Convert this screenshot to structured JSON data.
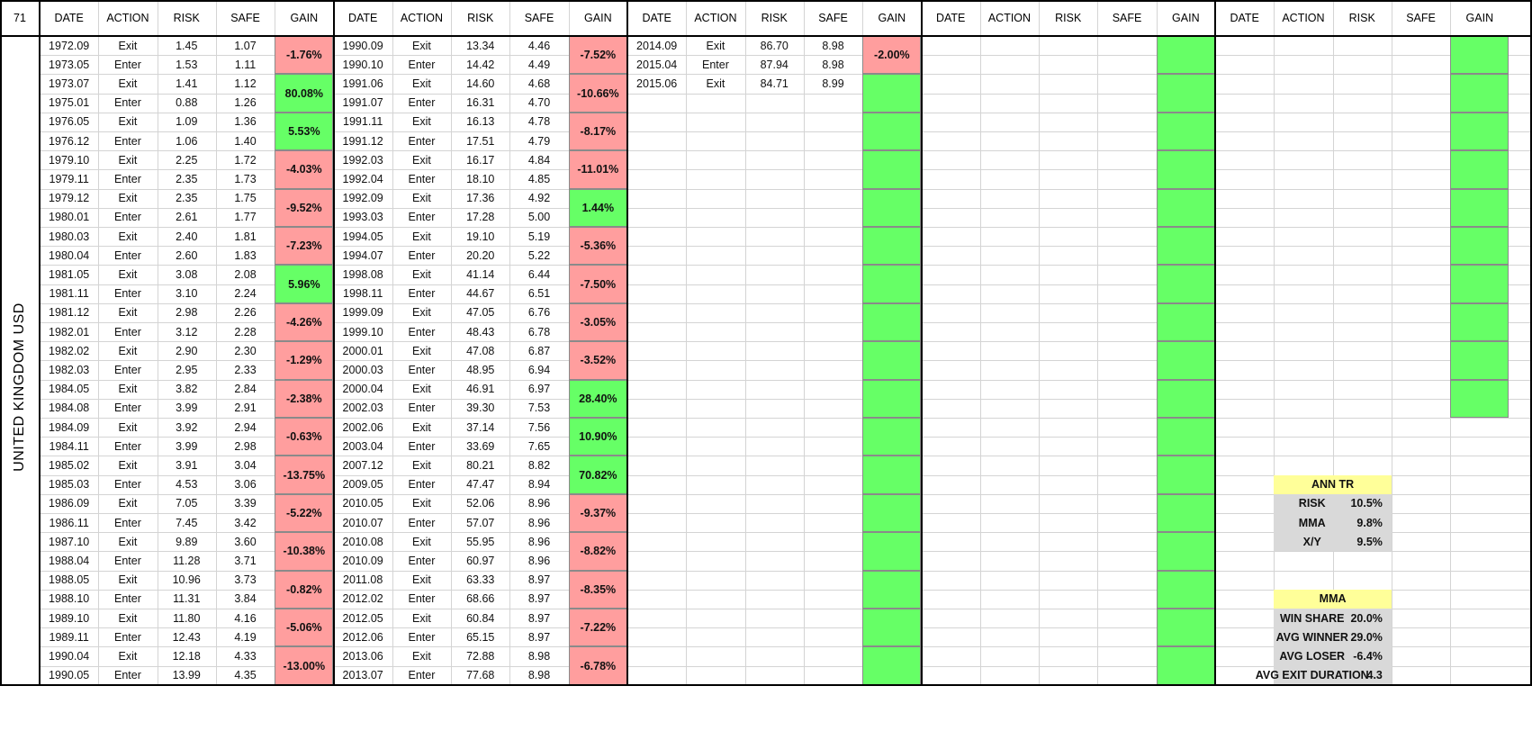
{
  "corner_label": "71",
  "side_label": "UNITED KINGDOM USD",
  "headers": [
    "DATE",
    "ACTION",
    "RISK",
    "SAFE",
    "GAIN"
  ],
  "blocks": [
    {
      "rows": [
        [
          "1972.09",
          "Exit",
          "1.45",
          "1.07"
        ],
        [
          "1973.05",
          "Enter",
          "1.53",
          "1.11"
        ],
        [
          "1973.07",
          "Exit",
          "1.41",
          "1.12"
        ],
        [
          "1975.01",
          "Enter",
          "0.88",
          "1.26"
        ],
        [
          "1976.05",
          "Exit",
          "1.09",
          "1.36"
        ],
        [
          "1976.12",
          "Enter",
          "1.06",
          "1.40"
        ],
        [
          "1979.10",
          "Exit",
          "2.25",
          "1.72"
        ],
        [
          "1979.11",
          "Enter",
          "2.35",
          "1.73"
        ],
        [
          "1979.12",
          "Exit",
          "2.35",
          "1.75"
        ],
        [
          "1980.01",
          "Enter",
          "2.61",
          "1.77"
        ],
        [
          "1980.03",
          "Exit",
          "2.40",
          "1.81"
        ],
        [
          "1980.04",
          "Enter",
          "2.60",
          "1.83"
        ],
        [
          "1981.05",
          "Exit",
          "3.08",
          "2.08"
        ],
        [
          "1981.11",
          "Enter",
          "3.10",
          "2.24"
        ],
        [
          "1981.12",
          "Exit",
          "2.98",
          "2.26"
        ],
        [
          "1982.01",
          "Enter",
          "3.12",
          "2.28"
        ],
        [
          "1982.02",
          "Exit",
          "2.90",
          "2.30"
        ],
        [
          "1982.03",
          "Enter",
          "2.95",
          "2.33"
        ],
        [
          "1984.05",
          "Exit",
          "3.82",
          "2.84"
        ],
        [
          "1984.08",
          "Enter",
          "3.99",
          "2.91"
        ],
        [
          "1984.09",
          "Exit",
          "3.92",
          "2.94"
        ],
        [
          "1984.11",
          "Enter",
          "3.99",
          "2.98"
        ],
        [
          "1985.02",
          "Exit",
          "3.91",
          "3.04"
        ],
        [
          "1985.03",
          "Enter",
          "4.53",
          "3.06"
        ],
        [
          "1986.09",
          "Exit",
          "7.05",
          "3.39"
        ],
        [
          "1986.11",
          "Enter",
          "7.45",
          "3.42"
        ],
        [
          "1987.10",
          "Exit",
          "9.89",
          "3.60"
        ],
        [
          "1988.04",
          "Enter",
          "11.28",
          "3.71"
        ],
        [
          "1988.05",
          "Exit",
          "10.96",
          "3.73"
        ],
        [
          "1988.10",
          "Enter",
          "11.31",
          "3.84"
        ],
        [
          "1989.10",
          "Exit",
          "11.80",
          "4.16"
        ],
        [
          "1989.11",
          "Enter",
          "12.43",
          "4.19"
        ],
        [
          "1990.04",
          "Exit",
          "12.18",
          "4.33"
        ],
        [
          "1990.05",
          "Enter",
          "13.99",
          "4.35"
        ]
      ],
      "gains": [
        {
          "text": "-1.76%",
          "color": "red"
        },
        {
          "text": "80.08%",
          "color": "green"
        },
        {
          "text": "5.53%",
          "color": "green"
        },
        {
          "text": "-4.03%",
          "color": "red"
        },
        {
          "text": "-9.52%",
          "color": "red"
        },
        {
          "text": "-7.23%",
          "color": "red"
        },
        {
          "text": "5.96%",
          "color": "green"
        },
        {
          "text": "-4.26%",
          "color": "red"
        },
        {
          "text": "-1.29%",
          "color": "red"
        },
        {
          "text": "-2.38%",
          "color": "red"
        },
        {
          "text": "-0.63%",
          "color": "red"
        },
        {
          "text": "-13.75%",
          "color": "red"
        },
        {
          "text": "-5.22%",
          "color": "red"
        },
        {
          "text": "-10.38%",
          "color": "red"
        },
        {
          "text": "-0.82%",
          "color": "red"
        },
        {
          "text": "-5.06%",
          "color": "red"
        },
        {
          "text": "-13.00%",
          "color": "red"
        }
      ]
    },
    {
      "rows": [
        [
          "1990.09",
          "Exit",
          "13.34",
          "4.46"
        ],
        [
          "1990.10",
          "Enter",
          "14.42",
          "4.49"
        ],
        [
          "1991.06",
          "Exit",
          "14.60",
          "4.68"
        ],
        [
          "1991.07",
          "Enter",
          "16.31",
          "4.70"
        ],
        [
          "1991.11",
          "Exit",
          "16.13",
          "4.78"
        ],
        [
          "1991.12",
          "Enter",
          "17.51",
          "4.79"
        ],
        [
          "1992.03",
          "Exit",
          "16.17",
          "4.84"
        ],
        [
          "1992.04",
          "Enter",
          "18.10",
          "4.85"
        ],
        [
          "1992.09",
          "Exit",
          "17.36",
          "4.92"
        ],
        [
          "1993.03",
          "Enter",
          "17.28",
          "5.00"
        ],
        [
          "1994.05",
          "Exit",
          "19.10",
          "5.19"
        ],
        [
          "1994.07",
          "Enter",
          "20.20",
          "5.22"
        ],
        [
          "1998.08",
          "Exit",
          "41.14",
          "6.44"
        ],
        [
          "1998.11",
          "Enter",
          "44.67",
          "6.51"
        ],
        [
          "1999.09",
          "Exit",
          "47.05",
          "6.76"
        ],
        [
          "1999.10",
          "Enter",
          "48.43",
          "6.78"
        ],
        [
          "2000.01",
          "Exit",
          "47.08",
          "6.87"
        ],
        [
          "2000.03",
          "Enter",
          "48.95",
          "6.94"
        ],
        [
          "2000.04",
          "Exit",
          "46.91",
          "6.97"
        ],
        [
          "2002.03",
          "Enter",
          "39.30",
          "7.53"
        ],
        [
          "2002.06",
          "Exit",
          "37.14",
          "7.56"
        ],
        [
          "2003.04",
          "Enter",
          "33.69",
          "7.65"
        ],
        [
          "2007.12",
          "Exit",
          "80.21",
          "8.82"
        ],
        [
          "2009.05",
          "Enter",
          "47.47",
          "8.94"
        ],
        [
          "2010.05",
          "Exit",
          "52.06",
          "8.96"
        ],
        [
          "2010.07",
          "Enter",
          "57.07",
          "8.96"
        ],
        [
          "2010.08",
          "Exit",
          "55.95",
          "8.96"
        ],
        [
          "2010.09",
          "Enter",
          "60.97",
          "8.96"
        ],
        [
          "2011.08",
          "Exit",
          "63.33",
          "8.97"
        ],
        [
          "2012.02",
          "Enter",
          "68.66",
          "8.97"
        ],
        [
          "2012.05",
          "Exit",
          "60.84",
          "8.97"
        ],
        [
          "2012.06",
          "Enter",
          "65.15",
          "8.97"
        ],
        [
          "2013.06",
          "Exit",
          "72.88",
          "8.98"
        ],
        [
          "2013.07",
          "Enter",
          "77.68",
          "8.98"
        ]
      ],
      "gains": [
        {
          "text": "-7.52%",
          "color": "red"
        },
        {
          "text": "-10.66%",
          "color": "red"
        },
        {
          "text": "-8.17%",
          "color": "red"
        },
        {
          "text": "-11.01%",
          "color": "red"
        },
        {
          "text": "1.44%",
          "color": "green"
        },
        {
          "text": "-5.36%",
          "color": "red"
        },
        {
          "text": "-7.50%",
          "color": "red"
        },
        {
          "text": "-3.05%",
          "color": "red"
        },
        {
          "text": "-3.52%",
          "color": "red"
        },
        {
          "text": "28.40%",
          "color": "green"
        },
        {
          "text": "10.90%",
          "color": "green"
        },
        {
          "text": "70.82%",
          "color": "green"
        },
        {
          "text": "-9.37%",
          "color": "red"
        },
        {
          "text": "-8.82%",
          "color": "red"
        },
        {
          "text": "-8.35%",
          "color": "red"
        },
        {
          "text": "-7.22%",
          "color": "red"
        },
        {
          "text": "-6.78%",
          "color": "red"
        }
      ]
    },
    {
      "rows": [
        [
          "2014.09",
          "Exit",
          "86.70",
          "8.98"
        ],
        [
          "2015.04",
          "Enter",
          "87.94",
          "8.98"
        ],
        [
          "2015.06",
          "Exit",
          "84.71",
          "8.99"
        ]
      ],
      "gains": [
        {
          "text": "-2.00%",
          "color": "red"
        },
        {
          "text": "",
          "color": "green"
        },
        {
          "text": "",
          "color": "green"
        },
        {
          "text": "",
          "color": "green"
        },
        {
          "text": "",
          "color": "green"
        },
        {
          "text": "",
          "color": "green"
        },
        {
          "text": "",
          "color": "green"
        },
        {
          "text": "",
          "color": "green"
        },
        {
          "text": "",
          "color": "green"
        },
        {
          "text": "",
          "color": "green"
        },
        {
          "text": "",
          "color": "green"
        },
        {
          "text": "",
          "color": "green"
        },
        {
          "text": "",
          "color": "green"
        },
        {
          "text": "",
          "color": "green"
        },
        {
          "text": "",
          "color": "green"
        },
        {
          "text": "",
          "color": "green"
        },
        {
          "text": "",
          "color": "green"
        }
      ]
    },
    {
      "rows": [],
      "gains": [
        {
          "text": "",
          "color": "green"
        },
        {
          "text": "",
          "color": "green"
        },
        {
          "text": "",
          "color": "green"
        },
        {
          "text": "",
          "color": "green"
        },
        {
          "text": "",
          "color": "green"
        },
        {
          "text": "",
          "color": "green"
        },
        {
          "text": "",
          "color": "green"
        },
        {
          "text": "",
          "color": "green"
        },
        {
          "text": "",
          "color": "green"
        },
        {
          "text": "",
          "color": "green"
        },
        {
          "text": "",
          "color": "green"
        },
        {
          "text": "",
          "color": "green"
        },
        {
          "text": "",
          "color": "green"
        },
        {
          "text": "",
          "color": "green"
        },
        {
          "text": "",
          "color": "green"
        },
        {
          "text": "",
          "color": "green"
        },
        {
          "text": "",
          "color": "green"
        }
      ]
    },
    {
      "rows": [],
      "gains": [
        {
          "text": "",
          "color": "green"
        },
        {
          "text": "",
          "color": "green"
        },
        {
          "text": "",
          "color": "green"
        },
        {
          "text": "",
          "color": "green"
        },
        {
          "text": "",
          "color": "green"
        },
        {
          "text": "",
          "color": "green"
        },
        {
          "text": "",
          "color": "green"
        },
        {
          "text": "",
          "color": "green"
        },
        {
          "text": "",
          "color": "green"
        },
        {
          "text": "",
          "color": "green"
        }
      ]
    }
  ],
  "panels": [
    {
      "title": "ANN TR",
      "rows": [
        [
          "RISK",
          "10.5%"
        ],
        [
          "MMA",
          "9.8%"
        ],
        [
          "X/Y",
          "9.5%"
        ]
      ]
    },
    {
      "title": "MMA",
      "rows": [
        [
          "WIN SHARE",
          "20.0%"
        ],
        [
          "AVG WINNER",
          "29.0%"
        ],
        [
          "AVG LOSER",
          "-6.4%"
        ],
        [
          "AVG EXIT DURATION",
          "4.3"
        ]
      ]
    }
  ],
  "colors": {
    "red": "#ff9e9e",
    "green": "#66ff66",
    "panel_title": "#ffff99",
    "panel_body": "#d9d9d9"
  }
}
